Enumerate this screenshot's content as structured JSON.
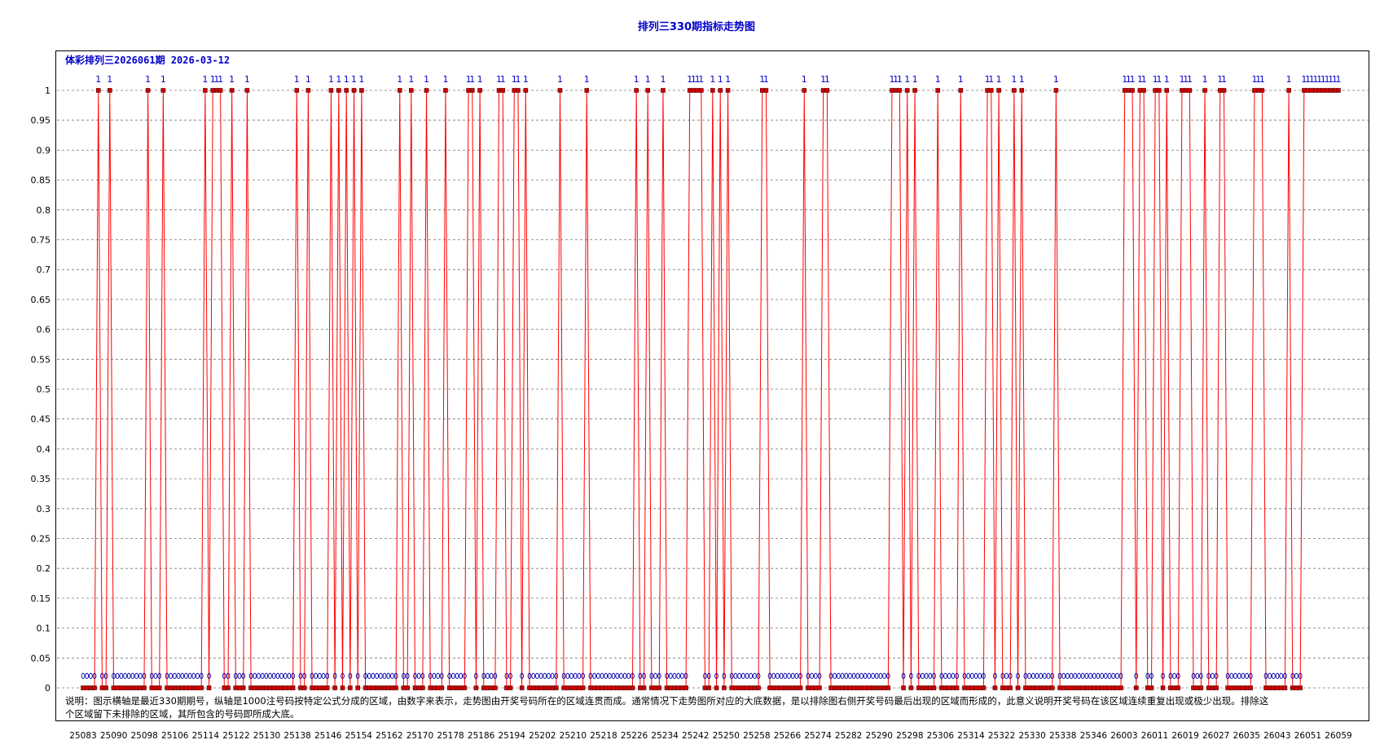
{
  "title": "排列三330期指标走势图",
  "subtitle": "体彩排列三2026061期 2026-03-12",
  "note": "说明：图示横轴是最近330期期号，纵轴是1000注号码按特定公式分成的区域，由数字来表示，走势图由开奖号码所在的区域连贯而成。通常情况下走势图所对应的大底数据，是以排除图右侧开奖号码最后出现的区域而形成的，此意义说明开奖号码在该区域连续重复出现或极少出现。排除这个区域留下未排除的区域，其所包含的号码即所成大底。",
  "colors": {
    "line": "#ff0000",
    "hit_marker": "#cc0000",
    "zero_marker": "#0000aa",
    "label": "#0000cc",
    "grid": "#777777"
  },
  "chart_data": {
    "type": "line",
    "xlabel": "",
    "ylabel": "",
    "ylim": [
      0,
      1
    ],
    "yticks": [
      "0",
      "0.05",
      "0.1",
      "0.15",
      "0.2",
      "0.25",
      "0.3",
      "0.35",
      "0.4",
      "0.45",
      "0.5",
      "0.55",
      "0.6",
      "0.65",
      "0.7",
      "0.75",
      "0.8",
      "0.85",
      "0.9",
      "0.95",
      "1"
    ],
    "xtick_labels": [
      "25083",
      "25090",
      "25098",
      "25106",
      "25114",
      "25122",
      "25130",
      "25138",
      "25146",
      "25154",
      "25162",
      "25170",
      "25178",
      "25186",
      "25194",
      "25202",
      "25210",
      "25218",
      "25226",
      "25234",
      "25242",
      "25250",
      "25258",
      "25266",
      "25274",
      "25282",
      "25290",
      "25298",
      "25306",
      "25314",
      "25322",
      "25330",
      "25338",
      "25346",
      "26003",
      "26011",
      "26019",
      "26027",
      "26035",
      "26043",
      "26051",
      "26059"
    ],
    "point_count": 330,
    "grid": true,
    "hit_label": "1",
    "series": [
      {
        "hits": [
          4,
          7,
          17,
          21,
          32,
          34,
          35,
          36,
          39,
          43,
          56,
          59,
          65,
          67,
          69,
          71,
          73,
          83,
          86,
          90,
          95,
          101,
          102,
          104,
          109,
          110,
          113,
          114,
          116,
          125,
          132,
          145,
          148,
          152,
          159,
          160,
          161,
          162,
          165,
          167,
          169,
          178,
          179,
          189,
          194,
          195,
          212,
          213,
          214,
          216,
          218,
          224,
          230,
          237,
          238,
          240,
          244,
          246,
          255,
          273,
          274,
          275,
          277,
          278,
          281,
          282,
          284,
          288,
          289,
          290,
          294,
          298,
          299,
          307,
          308,
          309,
          316,
          320,
          321,
          322,
          323,
          324,
          325,
          326,
          327,
          328,
          329
        ]
      }
    ]
  }
}
